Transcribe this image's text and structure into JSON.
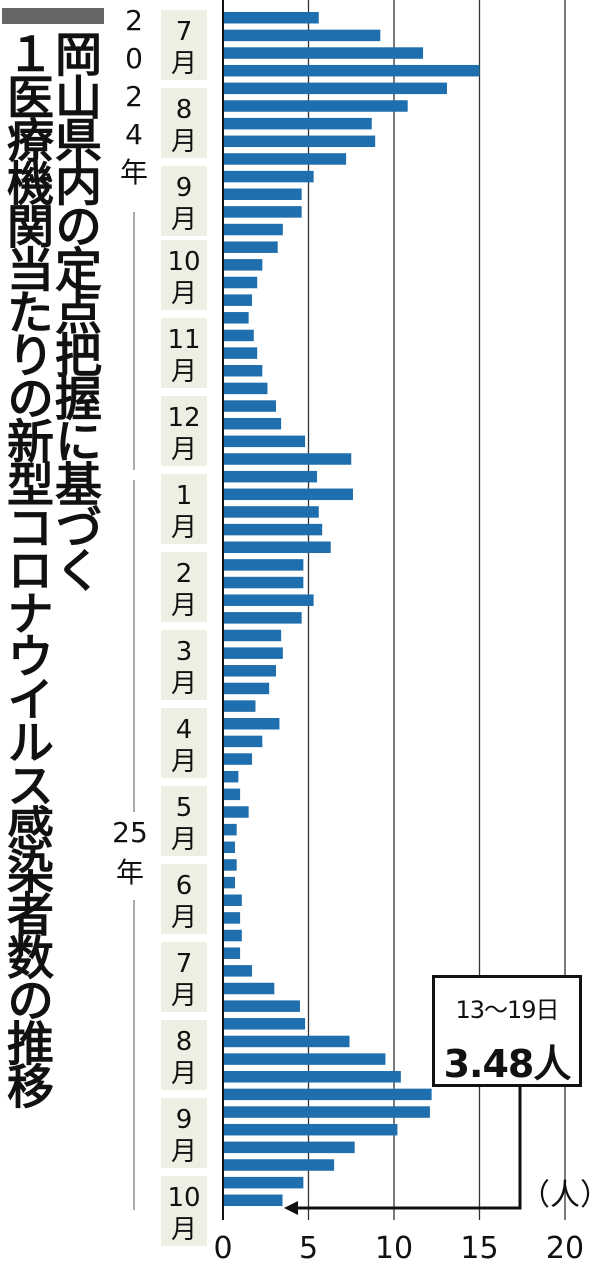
{
  "title": {
    "line1": "岡山県内の定点把握に基づく",
    "line2": "１医療機関当たりの新型コロナウイルス感染者数の推移"
  },
  "colors": {
    "bar": "#1f6fae",
    "label_bg": "#efeee3",
    "grid": "#333333",
    "axis": "#111111"
  },
  "callout": {
    "period": "13〜19日",
    "value": "3.48人"
  },
  "chart_data": {
    "type": "bar",
    "orientation": "horizontal",
    "title": "岡山県内の定点把握に基づく１医療機関当たりの新型コロナウイルス感染者数の推移",
    "xlabel": "",
    "unit_label": "（人）",
    "xlim": [
      0,
      20
    ],
    "xticks": [
      "0",
      "5",
      "10",
      "15",
      "20"
    ],
    "grid": "vertical lines at 5, 10, 15, 20",
    "year_labels": [
      "2024年",
      "25年"
    ],
    "month_labels": [
      "7月",
      "8月",
      "9月",
      "10月",
      "11月",
      "12月",
      "1月",
      "2月",
      "3月",
      "4月",
      "5月",
      "6月",
      "7月",
      "8月",
      "9月",
      "10月"
    ],
    "values": [
      5.6,
      9.2,
      11.7,
      15.0,
      13.1,
      10.8,
      8.7,
      8.9,
      7.2,
      5.3,
      4.6,
      4.6,
      3.5,
      3.2,
      2.3,
      2.0,
      1.7,
      1.5,
      1.8,
      2.0,
      2.3,
      2.6,
      3.1,
      3.4,
      4.8,
      7.5,
      5.5,
      7.6,
      5.6,
      5.8,
      6.3,
      4.7,
      4.7,
      5.3,
      4.6,
      3.4,
      3.5,
      3.1,
      2.7,
      1.9,
      3.3,
      2.3,
      1.7,
      0.9,
      1.0,
      1.5,
      0.8,
      0.7,
      0.8,
      0.7,
      1.1,
      1.0,
      1.1,
      1.0,
      1.7,
      3.0,
      4.5,
      4.8,
      7.4,
      9.5,
      10.4,
      12.2,
      12.1,
      10.2,
      7.7,
      6.5,
      4.7,
      3.48
    ],
    "annotation": {
      "text": "13〜19日 3.48人",
      "points_to": "last bar"
    }
  }
}
